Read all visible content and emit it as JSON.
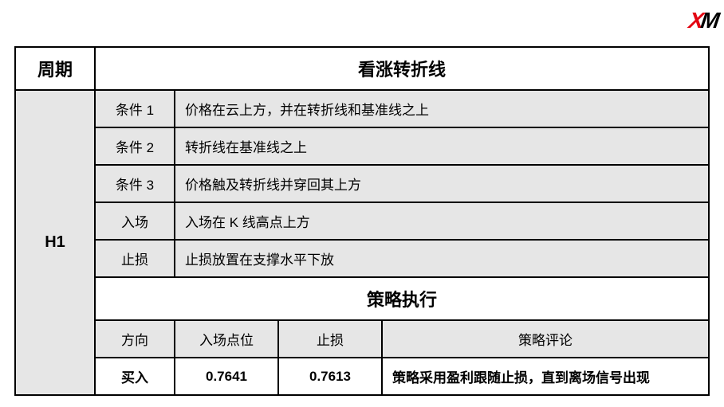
{
  "logo": {
    "x": "X",
    "m": "M"
  },
  "header": {
    "period_label": "周期",
    "title": "看涨转折线"
  },
  "period_value": "H1",
  "rows": [
    {
      "label": "条件 1",
      "value": "价格在云上方，并在转折线和基准线之上"
    },
    {
      "label": "条件 2",
      "value": "转折线在基准线之上"
    },
    {
      "label": "条件 3",
      "value": "价格触及转折线并穿回其上方"
    },
    {
      "label": "入场",
      "value": "入场在 K 线高点上方"
    },
    {
      "label": "止损",
      "value": "止损放置在支撑水平下放"
    }
  ],
  "execution": {
    "title": "策略执行",
    "columns": {
      "direction": "方向",
      "entry": "入场点位",
      "stop": "止损",
      "comment": "策略评论"
    },
    "data": {
      "direction": "买入",
      "entry": "0.7641",
      "stop": "0.7613",
      "comment": "策略采用盈利跟随止损，直到离场信号出现"
    }
  },
  "styling": {
    "border_color": "#000000",
    "header_bg": "#ffffff",
    "cell_bg": "#e6e6e6",
    "exec_val_bg": "#ffffff",
    "title_fontsize": 22,
    "body_fontsize": 17,
    "period_fontsize": 20,
    "font_weight_bold": 700,
    "border_width": 2,
    "logo_x_color": "#e30613",
    "logo_m_color": "#000000"
  }
}
